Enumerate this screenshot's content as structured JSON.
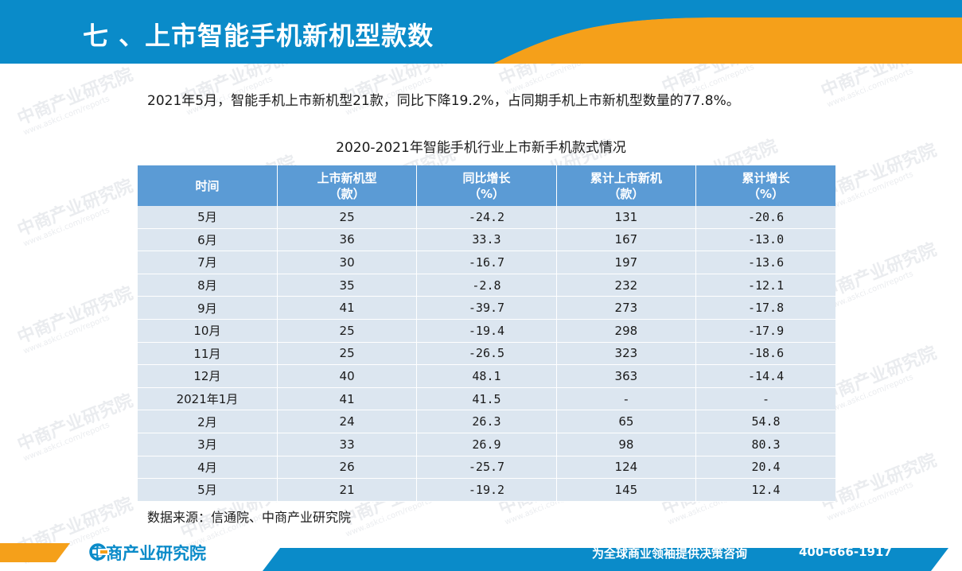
{
  "header": {
    "title": "七 、上市智能手机新机型款数"
  },
  "summary": "2021年5月，智能手机上市新机型21款，同比下降19.2%，占同期手机上市新机型数量的77.8%。",
  "table": {
    "title": "2020-2021年智能手机行业上市新手机款式情况",
    "columns": [
      {
        "line1": "时间",
        "line2": ""
      },
      {
        "line1": "上市新机型",
        "line2": "（款）"
      },
      {
        "line1": "同比增长",
        "line2": "（%）"
      },
      {
        "line1": "累计上市新机",
        "line2": "（款）"
      },
      {
        "line1": "累计增长",
        "line2": "（%）"
      }
    ],
    "rows": [
      [
        "5月",
        "25",
        "-24.2",
        "131",
        "-20.6"
      ],
      [
        "6月",
        "36",
        "33.3",
        "167",
        "-13.0"
      ],
      [
        "7月",
        "30",
        "-16.7",
        "197",
        "-13.6"
      ],
      [
        "8月",
        "35",
        "-2.8",
        "232",
        "-12.1"
      ],
      [
        "9月",
        "41",
        "-39.7",
        "273",
        "-17.8"
      ],
      [
        "10月",
        "25",
        "-19.4",
        "298",
        "-17.9"
      ],
      [
        "11月",
        "25",
        "-26.5",
        "323",
        "-18.6"
      ],
      [
        "12月",
        "40",
        "48.1",
        "363",
        "-14.4"
      ],
      [
        "2021年1月",
        "41",
        "41.5",
        "-",
        "-"
      ],
      [
        "2月",
        "24",
        "26.3",
        "65",
        "54.8"
      ],
      [
        "3月",
        "33",
        "26.9",
        "98",
        "80.3"
      ],
      [
        "4月",
        "26",
        "-25.7",
        "124",
        "20.4"
      ],
      [
        "5月",
        "21",
        "-19.2",
        "145",
        "12.4"
      ]
    ]
  },
  "source": "数据来源：信通院、中商产业研究院",
  "footer": {
    "logo_text": "中商产业研究院",
    "slogan": "为全球商业领袖提供决策咨询",
    "phone": "400-666-1917"
  },
  "watermark": {
    "cn": "中商产业研究院",
    "url": "www.askci.com/reports"
  },
  "colors": {
    "header_blue": "#0a8bc9",
    "accent_orange": "#f5a01a",
    "table_header": "#5b9bd5",
    "table_row": "#dce6f0"
  }
}
